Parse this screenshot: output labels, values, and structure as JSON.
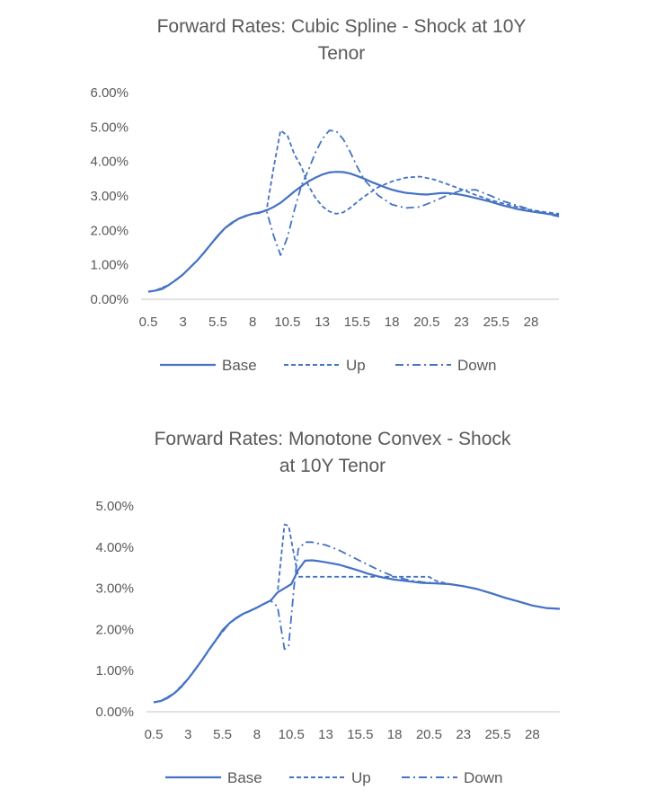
{
  "colors": {
    "series": "#4472C4",
    "axis": "#d9d9d9",
    "text": "#595959"
  },
  "chart_data": [
    {
      "type": "line",
      "title_line1": "Forward Rates: Cubic Spline - Shock at 10Y",
      "title_line2": "Tenor",
      "xlabel": "",
      "ylabel": "",
      "x_tick_labels": [
        "0.5",
        "3",
        "5.5",
        "8",
        "10.5",
        "13",
        "15.5",
        "18",
        "20.5",
        "23",
        "25.5",
        "28"
      ],
      "y_tick_labels": [
        "0.00%",
        "1.00%",
        "2.00%",
        "3.00%",
        "4.00%",
        "5.00%",
        "6.00%"
      ],
      "ylim": [
        0,
        0.06
      ],
      "xlim": [
        0.5,
        30
      ],
      "grid": false,
      "legend_position": "bottom",
      "series": [
        {
          "name": "Base",
          "dash": "solid",
          "x": [
            0.5,
            1,
            1.5,
            2,
            2.5,
            3,
            3.5,
            4,
            4.5,
            5,
            5.5,
            6,
            6.5,
            7,
            7.5,
            8,
            8.5,
            9,
            9.5,
            10,
            10.5,
            11,
            11.5,
            12,
            12.5,
            13,
            13.5,
            14,
            14.5,
            15,
            15.5,
            16,
            16.5,
            17,
            17.5,
            18,
            18.5,
            19,
            19.5,
            20,
            20.5,
            21,
            21.5,
            22,
            22.5,
            23,
            23.5,
            24,
            24.5,
            25,
            25.5,
            26,
            26.5,
            27,
            27.5,
            28,
            28.5,
            29,
            29.5,
            30
          ],
          "y": [
            0.0022,
            0.0025,
            0.003,
            0.0042,
            0.0056,
            0.0072,
            0.0092,
            0.0112,
            0.0135,
            0.016,
            0.0185,
            0.0206,
            0.0222,
            0.0234,
            0.0242,
            0.0248,
            0.0252,
            0.0258,
            0.0268,
            0.028,
            0.0296,
            0.0313,
            0.0328,
            0.0342,
            0.0353,
            0.0362,
            0.0368,
            0.037,
            0.0369,
            0.0365,
            0.0358,
            0.035,
            0.0341,
            0.0333,
            0.0325,
            0.0318,
            0.0313,
            0.0309,
            0.0307,
            0.0305,
            0.0304,
            0.0306,
            0.0308,
            0.0308,
            0.0306,
            0.0303,
            0.0299,
            0.0294,
            0.0289,
            0.0284,
            0.0278,
            0.0272,
            0.0267,
            0.0262,
            0.0258,
            0.0255,
            0.0252,
            0.0249,
            0.0246,
            0.0244
          ]
        },
        {
          "name": "Up",
          "dash": "dashed",
          "x": [
            0.5,
            1,
            2,
            3,
            4,
            5,
            6,
            7,
            8,
            8.5,
            9,
            9.5,
            10,
            10.5,
            11,
            11.5,
            12,
            12.5,
            13,
            13.5,
            14,
            14.5,
            15,
            15.5,
            16,
            17,
            18,
            19,
            20,
            21,
            22,
            23,
            24,
            25,
            26,
            27,
            28,
            29,
            30
          ],
          "y": [
            0.0022,
            0.0025,
            0.0042,
            0.0072,
            0.0112,
            0.016,
            0.0206,
            0.0234,
            0.0248,
            0.025,
            0.026,
            0.038,
            0.049,
            0.0475,
            0.042,
            0.0385,
            0.033,
            0.0295,
            0.027,
            0.0255,
            0.0248,
            0.0252,
            0.0265,
            0.0282,
            0.0298,
            0.0325,
            0.0342,
            0.0353,
            0.0356,
            0.0348,
            0.0334,
            0.0319,
            0.0303,
            0.0289,
            0.0278,
            0.0268,
            0.0259,
            0.0253,
            0.0248
          ]
        },
        {
          "name": "Down",
          "dash": "dash-dot",
          "x": [
            0.5,
            1,
            2,
            3,
            4,
            5,
            6,
            7,
            8,
            8.5,
            9,
            9.5,
            10,
            10.5,
            11,
            11.5,
            12,
            12.5,
            13,
            13.5,
            14,
            14.5,
            15,
            15.5,
            16,
            17,
            18,
            19,
            20,
            21,
            22,
            23,
            24,
            25,
            26,
            27,
            28,
            29,
            30
          ],
          "y": [
            0.0022,
            0.0025,
            0.0042,
            0.0072,
            0.0112,
            0.016,
            0.0206,
            0.0234,
            0.0248,
            0.0252,
            0.0256,
            0.0185,
            0.0128,
            0.018,
            0.026,
            0.033,
            0.0375,
            0.0425,
            0.0465,
            0.049,
            0.0488,
            0.0465,
            0.0428,
            0.0385,
            0.0348,
            0.0302,
            0.0275,
            0.0265,
            0.0268,
            0.0284,
            0.0302,
            0.0316,
            0.0318,
            0.0302,
            0.0285,
            0.0272,
            0.026,
            0.0249,
            0.024
          ]
        }
      ]
    },
    {
      "type": "line",
      "title_line1": "Forward Rates: Monotone Convex - Shock",
      "title_line2": "at 10Y Tenor",
      "xlabel": "",
      "ylabel": "",
      "x_tick_labels": [
        "0.5",
        "3",
        "5.5",
        "8",
        "10.5",
        "13",
        "15.5",
        "18",
        "20.5",
        "23",
        "25.5",
        "28"
      ],
      "y_tick_labels": [
        "0.00%",
        "1.00%",
        "2.00%",
        "3.00%",
        "4.00%",
        "5.00%"
      ],
      "ylim": [
        0,
        0.05
      ],
      "xlim": [
        0.5,
        30
      ],
      "grid": false,
      "legend_position": "bottom",
      "series": [
        {
          "name": "Base",
          "dash": "solid",
          "x": [
            0.5,
            1,
            1.5,
            2,
            2.5,
            3,
            3.5,
            4,
            4.5,
            5,
            5.5,
            6,
            6.5,
            7,
            7.5,
            8,
            8.5,
            9,
            9.5,
            10,
            10.5,
            11,
            11.5,
            12,
            12.5,
            13,
            13.5,
            14,
            14.5,
            15,
            15.5,
            16,
            17,
            18,
            19,
            20,
            21,
            22,
            23,
            24,
            25,
            26,
            27,
            28,
            29,
            30
          ],
          "y": [
            0.0023,
            0.0026,
            0.0033,
            0.0045,
            0.006,
            0.008,
            0.0102,
            0.0125,
            0.015,
            0.0173,
            0.0198,
            0.0215,
            0.0228,
            0.0238,
            0.0245,
            0.0253,
            0.0262,
            0.027,
            0.029,
            0.03,
            0.031,
            0.0345,
            0.0367,
            0.0368,
            0.0366,
            0.0363,
            0.036,
            0.0357,
            0.0352,
            0.0347,
            0.0342,
            0.0336,
            0.0327,
            0.0321,
            0.0317,
            0.0313,
            0.0312,
            0.031,
            0.0305,
            0.0298,
            0.0288,
            0.0277,
            0.0268,
            0.0258,
            0.0252,
            0.025
          ]
        },
        {
          "name": "Up",
          "dash": "dashed",
          "x": [
            0.5,
            1,
            2,
            3,
            4,
            5,
            6,
            7,
            8,
            9,
            9.5,
            10,
            10.3,
            10.7,
            11,
            11.5,
            12,
            13,
            14,
            15,
            16,
            17,
            18,
            19,
            20,
            20.5,
            21,
            22,
            23,
            24,
            25,
            26,
            27,
            28,
            29,
            30
          ],
          "y": [
            0.0023,
            0.0026,
            0.0045,
            0.008,
            0.0125,
            0.0173,
            0.0215,
            0.0238,
            0.0253,
            0.027,
            0.029,
            0.0455,
            0.0452,
            0.038,
            0.0328,
            0.0328,
            0.0328,
            0.0328,
            0.0328,
            0.0328,
            0.0328,
            0.0328,
            0.0328,
            0.0328,
            0.0328,
            0.0328,
            0.0318,
            0.031,
            0.0305,
            0.0298,
            0.0288,
            0.0277,
            0.0268,
            0.0258,
            0.0252,
            0.025
          ]
        },
        {
          "name": "Down",
          "dash": "dash-dot",
          "x": [
            0.5,
            1,
            2,
            3,
            4,
            5,
            6,
            7,
            8,
            9,
            9.5,
            10,
            10.3,
            10.7,
            11,
            11.5,
            12,
            13,
            14,
            15,
            16,
            17,
            18,
            19,
            20,
            21,
            22,
            23,
            24,
            25,
            26,
            27,
            28,
            29,
            30
          ],
          "y": [
            0.0023,
            0.0026,
            0.0045,
            0.008,
            0.0125,
            0.0173,
            0.0215,
            0.0238,
            0.0253,
            0.027,
            0.0255,
            0.0152,
            0.016,
            0.0305,
            0.0395,
            0.0412,
            0.0412,
            0.0405,
            0.0392,
            0.0375,
            0.0358,
            0.0342,
            0.0328,
            0.032,
            0.0315,
            0.0312,
            0.031,
            0.0305,
            0.0298,
            0.0288,
            0.0277,
            0.0268,
            0.0258,
            0.0252,
            0.025
          ]
        }
      ]
    }
  ]
}
